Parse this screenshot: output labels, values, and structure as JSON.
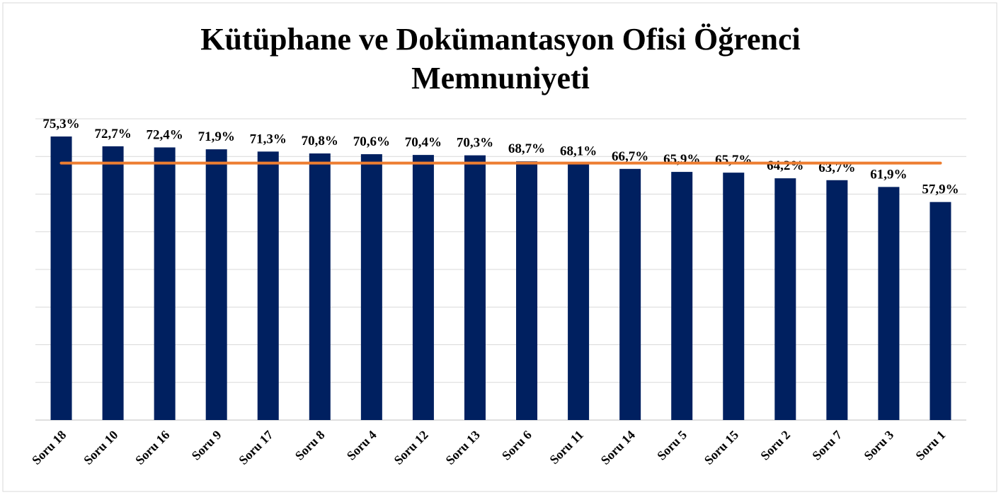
{
  "chart_data": {
    "type": "bar",
    "title": [
      "Kütüphane ve Dokümantasyon Ofisi Öğrenci",
      "Memnuniyeti"
    ],
    "categories": [
      "Soru 18",
      "Soru 10",
      "Soru 16",
      "Soru 9",
      "Soru 17",
      "Soru 8",
      "Soru 4",
      "Soru 12",
      "Soru 13",
      "Soru 6",
      "Soru 11",
      "Soru 14",
      "Soru 5",
      "Soru 15",
      "Soru 2",
      "Soru 7",
      "Soru 3",
      "Soru 1"
    ],
    "series": [
      {
        "type": "bar",
        "color": "#002060",
        "values": [
          75.3,
          72.7,
          72.4,
          71.9,
          71.3,
          70.8,
          70.6,
          70.4,
          70.3,
          68.7,
          68.1,
          66.7,
          65.9,
          65.7,
          64.2,
          63.7,
          61.9,
          57.9
        ],
        "value_labels": [
          "75,3%",
          "72,7%",
          "72,4%",
          "71,9%",
          "71,3%",
          "70,8%",
          "70,6%",
          "70,4%",
          "70,3%",
          "68,7%",
          "68,1%",
          "66,7%",
          "65,9%",
          "65,7%",
          "64,2%",
          "63,7%",
          "61,9%",
          "57,9%"
        ]
      },
      {
        "type": "line",
        "color": "#ed7d31",
        "values": [
          68.25,
          68.25,
          68.25,
          68.25,
          68.25,
          68.25,
          68.25,
          68.25,
          68.25,
          68.25,
          68.25,
          68.25,
          68.25,
          68.25,
          68.25,
          68.25,
          68.25,
          68.25
        ]
      }
    ],
    "ylim": [
      0,
      80
    ],
    "yticks": [
      0,
      10,
      20,
      30,
      40,
      50,
      60,
      70,
      80
    ],
    "grid": true
  }
}
